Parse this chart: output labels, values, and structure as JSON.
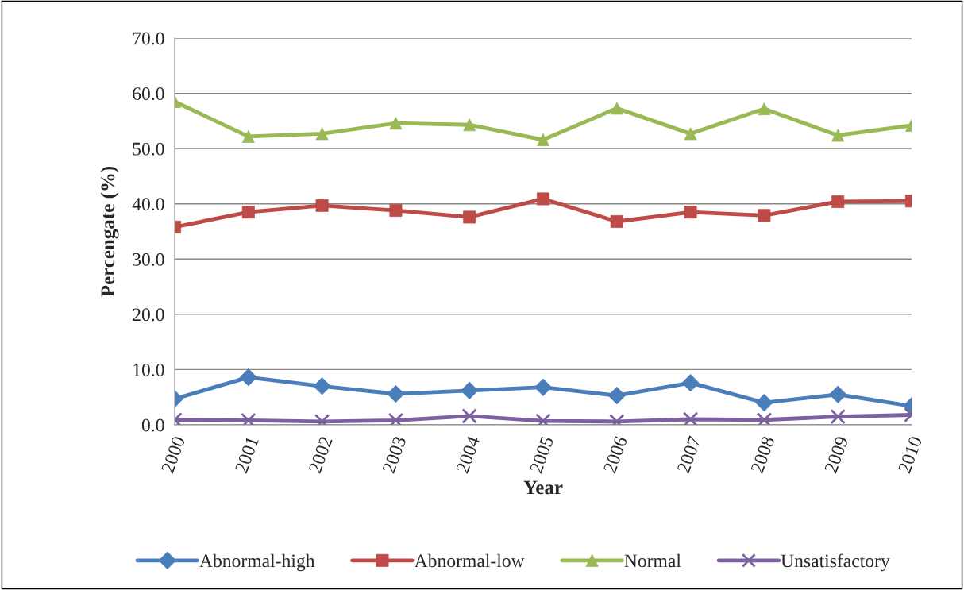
{
  "chart_data": {
    "type": "line",
    "xlabel": "Year",
    "ylabel": "Percengate (%)",
    "categories": [
      "2000",
      "2001",
      "2002",
      "2003",
      "2004",
      "2005",
      "2006",
      "2007",
      "2008",
      "2009",
      "2010"
    ],
    "series": [
      {
        "name": "Abnormal-high",
        "color": "#4a7ebb",
        "marker": "diamond",
        "values": [
          4.7,
          8.6,
          7.0,
          5.6,
          6.2,
          6.8,
          5.3,
          7.6,
          4.0,
          5.5,
          3.4
        ]
      },
      {
        "name": "Abnormal-low",
        "color": "#be4b48",
        "marker": "square",
        "values": [
          35.8,
          38.5,
          39.7,
          38.8,
          37.6,
          40.9,
          36.8,
          38.5,
          37.9,
          40.4,
          40.5
        ]
      },
      {
        "name": "Normal",
        "color": "#98b954",
        "marker": "triangle",
        "values": [
          58.5,
          52.2,
          52.7,
          54.6,
          54.3,
          51.6,
          57.3,
          52.7,
          57.2,
          52.4,
          54.2
        ]
      },
      {
        "name": "Unsatisfactory",
        "color": "#7d60a0",
        "marker": "cross",
        "values": [
          0.9,
          0.8,
          0.6,
          0.8,
          1.6,
          0.7,
          0.6,
          1.0,
          0.9,
          1.5,
          1.8
        ]
      }
    ],
    "ylim": [
      0,
      70
    ],
    "yticks": [
      {
        "value": 0,
        "label": "0.0"
      },
      {
        "value": 10,
        "label": "10.0"
      },
      {
        "value": 20,
        "label": "20.0"
      },
      {
        "value": 30,
        "label": "30.0"
      },
      {
        "value": 40,
        "label": "40.0"
      },
      {
        "value": 50,
        "label": "50.0"
      },
      {
        "value": 60,
        "label": "60.0"
      },
      {
        "value": 70,
        "label": "70.0"
      }
    ],
    "grid": "y",
    "legend": "bottom",
    "line_style": "solid"
  }
}
